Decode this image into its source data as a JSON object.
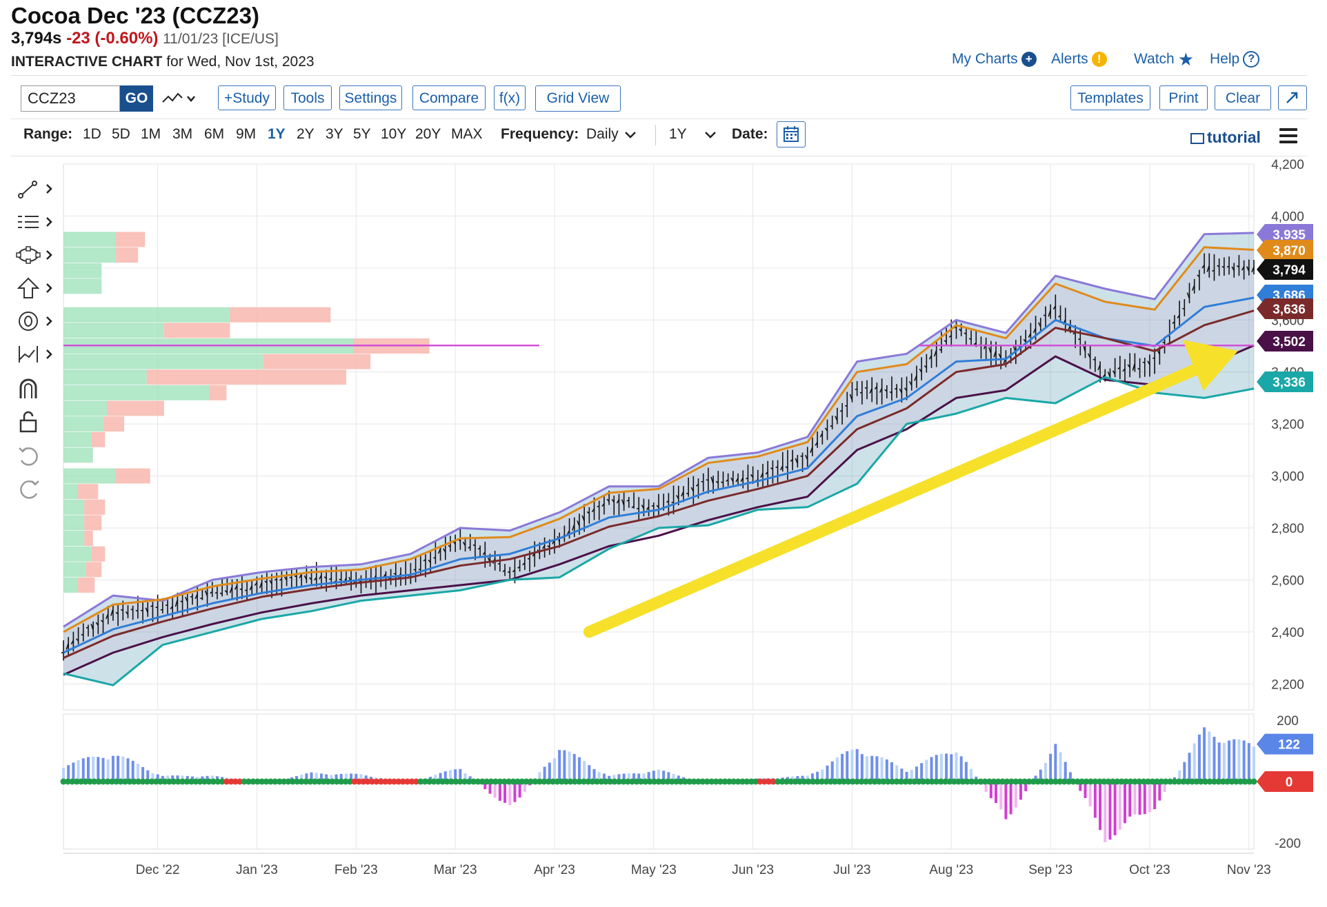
{
  "header": {
    "title": "Cocoa Dec '23 (CCZ23)",
    "price": "3,794s",
    "change": "-23 (-0.60%)",
    "date_exchange": "11/01/23 [ICE/US]",
    "chart_label": "INTERACTIVE CHART",
    "chart_for": "for Wed, Nov 1st, 2023"
  },
  "links": {
    "my_charts": "My Charts",
    "alerts": "Alerts",
    "watch": "Watch",
    "help": "Help"
  },
  "toolbar": {
    "symbol_value": "CCZ23",
    "go": "GO",
    "study": "+Study",
    "tools": "Tools",
    "settings": "Settings",
    "compare": "Compare",
    "fx": "f(x)",
    "grid_view": "Grid View",
    "templates": "Templates",
    "print": "Print",
    "clear": "Clear"
  },
  "range_bar": {
    "range_label": "Range:",
    "ranges": [
      "1D",
      "5D",
      "1M",
      "3M",
      "6M",
      "9M",
      "1Y",
      "2Y",
      "3Y",
      "5Y",
      "10Y",
      "20Y",
      "MAX"
    ],
    "active_range": "1Y",
    "frequency_label": "Frequency:",
    "frequency_value": "Daily",
    "period_value": "1Y",
    "date_label": "Date:",
    "tutorial": "tutorial"
  },
  "colors": {
    "link_blue": "#1a5fa8",
    "negative_red": "#c0161c",
    "upper_band": "#8a78d8",
    "keltner_upper": "#e08a1a",
    "ma_blue": "#2f7ed8",
    "ma_maroon": "#7a2a2a",
    "lower_band": "#1aa7a7",
    "keltner_lower": "#4a1048",
    "level_line": "#d24fd8",
    "arrow": "#f6e02a",
    "vol_up": "#a6e4c0",
    "vol_down": "#f9b8ae",
    "macd_pos": "#6f8fe8",
    "macd_neg": "#d23fd3",
    "zero_green": "#1f9c4a",
    "zero_red": "#e53935"
  },
  "chart_data": {
    "type": "line",
    "symbol": "CCZ23",
    "x_axis": {
      "tick_labels": [
        "Dec '22",
        "Jan '23",
        "Feb '23",
        "Mar '23",
        "Apr '23",
        "May '23",
        "Jun '23",
        "Jul '23",
        "Aug '23",
        "Sep '23",
        "Oct '23",
        "Nov '23"
      ]
    },
    "price_axis": {
      "range": [
        2100,
        4200
      ],
      "tick_labels": [
        "4,200",
        "4,000",
        "3,800",
        "3,600",
        "3,400",
        "3,200",
        "3,000",
        "2,800",
        "2,600",
        "2,400",
        "2,200"
      ]
    },
    "oscillator_axis": {
      "range": [
        -220,
        220
      ],
      "tick_labels": [
        "200",
        "-200"
      ]
    },
    "price_tags": [
      {
        "label": "3,935",
        "value": 3935,
        "color": "#8a78d8"
      },
      {
        "label": "3,870",
        "value": 3870,
        "color": "#e08a1a"
      },
      {
        "label": "3,794",
        "value": 3794,
        "color": "#111111"
      },
      {
        "label": "3,686",
        "value": 3686,
        "color": "#2f7ed8"
      },
      {
        "label": "3,636",
        "value": 3636,
        "color": "#7a2a2a"
      },
      {
        "label": "3,502",
        "value": 3502,
        "color": "#4a1048"
      },
      {
        "label": "3,336",
        "value": 3336,
        "color": "#1aa7a7"
      }
    ],
    "oscillator_tags": [
      {
        "label": "122",
        "value": 122,
        "color": "#5a86e8"
      },
      {
        "label": "0",
        "value": 0,
        "color": "#e53935"
      }
    ],
    "horizontal_level": 3502,
    "close_series": {
      "x": [
        0.0,
        0.5,
        1.0,
        1.5,
        2.0,
        2.5,
        3.0,
        3.5,
        4.0,
        4.5,
        5.0,
        5.5,
        6.0,
        6.5,
        7.0,
        7.5,
        8.0,
        8.5,
        9.0,
        9.5,
        10.0,
        10.5,
        11.0,
        11.5,
        12.0
      ],
      "y": [
        2330,
        2475,
        2490,
        2555,
        2580,
        2615,
        2595,
        2625,
        2760,
        2630,
        2760,
        2910,
        2875,
        2980,
        2995,
        3075,
        3330,
        3330,
        3570,
        3445,
        3645,
        3390,
        3440,
        3800,
        3794
      ]
    },
    "upper_band": {
      "x": [
        0.0,
        0.5,
        1.0,
        1.5,
        2.0,
        2.5,
        3.0,
        3.5,
        4.0,
        4.5,
        5.0,
        5.5,
        6.0,
        6.5,
        7.0,
        7.5,
        8.0,
        8.5,
        9.0,
        9.5,
        10.0,
        10.5,
        11.0,
        11.5,
        12.0
      ],
      "y": [
        2420,
        2540,
        2520,
        2600,
        2630,
        2650,
        2660,
        2700,
        2800,
        2790,
        2860,
        2960,
        2960,
        3070,
        3090,
        3150,
        3440,
        3470,
        3600,
        3550,
        3770,
        3720,
        3680,
        3930,
        3935
      ]
    },
    "keltner_upper": {
      "x": [
        0.0,
        0.5,
        1.0,
        1.5,
        2.0,
        2.5,
        3.0,
        3.5,
        4.0,
        4.5,
        5.0,
        5.5,
        6.0,
        6.5,
        7.0,
        7.5,
        8.0,
        8.5,
        9.0,
        9.5,
        10.0,
        10.5,
        11.0,
        11.5,
        12.0
      ],
      "y": [
        2400,
        2505,
        2525,
        2575,
        2605,
        2630,
        2640,
        2680,
        2760,
        2765,
        2835,
        2935,
        2950,
        3050,
        3075,
        3130,
        3400,
        3430,
        3580,
        3530,
        3740,
        3670,
        3640,
        3880,
        3870
      ]
    },
    "ma_blue": {
      "x": [
        0.0,
        0.5,
        1.0,
        1.5,
        2.0,
        2.5,
        3.0,
        3.5,
        4.0,
        4.5,
        5.0,
        5.5,
        6.0,
        6.5,
        7.0,
        7.5,
        8.0,
        8.5,
        9.0,
        9.5,
        10.0,
        10.5,
        11.0,
        11.5,
        12.0
      ],
      "y": [
        2320,
        2410,
        2460,
        2510,
        2550,
        2580,
        2600,
        2620,
        2680,
        2700,
        2760,
        2840,
        2870,
        2940,
        2980,
        3030,
        3230,
        3300,
        3440,
        3450,
        3600,
        3530,
        3500,
        3650,
        3686
      ]
    },
    "ma_maroon": {
      "x": [
        0.0,
        0.5,
        1.0,
        1.5,
        2.0,
        2.5,
        3.0,
        3.5,
        4.0,
        4.5,
        5.0,
        5.5,
        6.0,
        6.5,
        7.0,
        7.5,
        8.0,
        8.5,
        9.0,
        9.5,
        10.0,
        10.5,
        11.0,
        11.5,
        12.0
      ],
      "y": [
        2300,
        2385,
        2440,
        2490,
        2535,
        2565,
        2590,
        2610,
        2655,
        2680,
        2730,
        2805,
        2845,
        2905,
        2950,
        3000,
        3180,
        3260,
        3400,
        3430,
        3570,
        3530,
        3480,
        3580,
        3636
      ]
    },
    "keltner_lower": {
      "x": [
        0.0,
        0.5,
        1.0,
        1.5,
        2.0,
        2.5,
        3.0,
        3.5,
        4.0,
        4.5,
        5.0,
        5.5,
        6.0,
        6.5,
        7.0,
        7.5,
        8.0,
        8.5,
        9.0,
        9.5,
        10.0,
        10.5,
        11.0,
        11.5,
        12.0
      ],
      "y": [
        2235,
        2320,
        2380,
        2430,
        2475,
        2510,
        2540,
        2560,
        2580,
        2600,
        2660,
        2730,
        2770,
        2830,
        2880,
        2920,
        3100,
        3180,
        3300,
        3330,
        3460,
        3370,
        3350,
        3420,
        3502
      ]
    },
    "lower_band": {
      "x": [
        0.0,
        0.5,
        1.0,
        1.5,
        2.0,
        2.5,
        3.0,
        3.5,
        4.0,
        4.5,
        5.0,
        5.5,
        6.0,
        6.5,
        7.0,
        7.5,
        8.0,
        8.5,
        9.0,
        9.5,
        10.0,
        10.5,
        11.0,
        11.5,
        12.0
      ],
      "y": [
        2240,
        2195,
        2350,
        2400,
        2450,
        2480,
        2520,
        2540,
        2560,
        2600,
        2610,
        2720,
        2800,
        2810,
        2870,
        2880,
        2970,
        3200,
        3240,
        3300,
        3280,
        3380,
        3320,
        3300,
        3336
      ]
    },
    "oscillator": {
      "x": [
        0.0,
        0.5,
        1.0,
        1.5,
        2.0,
        2.5,
        3.0,
        3.5,
        4.0,
        4.5,
        5.0,
        5.5,
        6.0,
        6.5,
        7.0,
        7.5,
        8.0,
        8.5,
        9.0,
        9.5,
        10.0,
        10.5,
        11.0,
        11.5,
        12.0
      ],
      "y": [
        60,
        100,
        20,
        20,
        -5,
        30,
        25,
        -5,
        50,
        -100,
        120,
        20,
        40,
        -5,
        10,
        20,
        120,
        40,
        120,
        -140,
        130,
        -200,
        -90,
        180,
        122
      ]
    },
    "volume_by_price": [
      {
        "price": 3910,
        "up": 0.3,
        "down": 0.17
      },
      {
        "price": 3850,
        "up": 0.3,
        "down": 0.13
      },
      {
        "price": 3790,
        "up": 0.22,
        "down": 0.0
      },
      {
        "price": 3730,
        "up": 0.22,
        "down": 0.0
      },
      {
        "price": 3620,
        "up": 0.96,
        "down": 0.58
      },
      {
        "price": 3560,
        "up": 0.58,
        "down": 0.38
      },
      {
        "price": 3500,
        "up": 1.67,
        "down": 0.44
      },
      {
        "price": 3440,
        "up": 1.15,
        "down": 0.62
      },
      {
        "price": 3380,
        "up": 0.48,
        "down": 1.15
      },
      {
        "price": 3320,
        "up": 0.84,
        "down": 0.1
      },
      {
        "price": 3260,
        "up": 0.25,
        "down": 0.33
      },
      {
        "price": 3200,
        "up": 0.23,
        "down": 0.12
      },
      {
        "price": 3140,
        "up": 0.16,
        "down": 0.08
      },
      {
        "price": 3080,
        "up": 0.17,
        "down": 0.0
      },
      {
        "price": 3000,
        "up": 0.3,
        "down": 0.2
      },
      {
        "price": 2940,
        "up": 0.08,
        "down": 0.12
      },
      {
        "price": 2880,
        "up": 0.12,
        "down": 0.12
      },
      {
        "price": 2820,
        "up": 0.12,
        "down": 0.1
      },
      {
        "price": 2760,
        "up": 0.12,
        "down": 0.05
      },
      {
        "price": 2700,
        "up": 0.16,
        "down": 0.08
      },
      {
        "price": 2640,
        "up": 0.13,
        "down": 0.09
      },
      {
        "price": 2580,
        "up": 0.08,
        "down": 0.1
      }
    ],
    "annotation": {
      "type": "arrow",
      "from": [
        5.3,
        2400
      ],
      "to": [
        11.7,
        3460
      ]
    }
  }
}
